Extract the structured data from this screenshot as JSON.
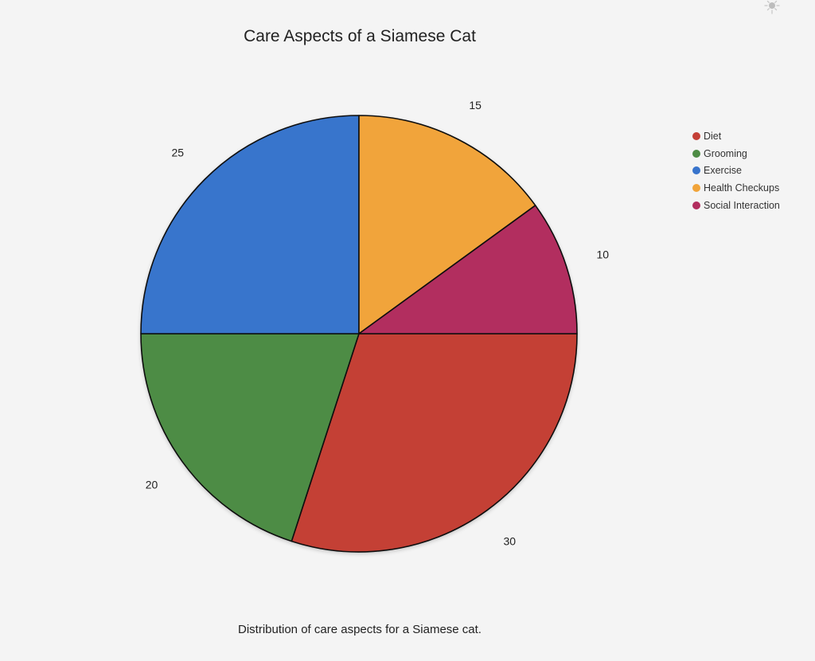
{
  "chart_data": {
    "type": "pie",
    "title": "Care Aspects of a Siamese Cat",
    "caption": "Distribution of care aspects for a Siamese cat.",
    "legend_position": "right",
    "slices": [
      {
        "label": "Diet",
        "value": 30,
        "color": "#c43f36"
      },
      {
        "label": "Grooming",
        "value": 20,
        "color": "#4e8c45"
      },
      {
        "label": "Exercise",
        "value": 25,
        "color": "#3874cc"
      },
      {
        "label": "Health Checkups",
        "value": 15,
        "color": "#f1a43a"
      },
      {
        "label": "Social Interaction",
        "value": 10,
        "color": "#b22d5e"
      }
    ]
  },
  "theme_toggle": {
    "icon": "sun-icon"
  }
}
